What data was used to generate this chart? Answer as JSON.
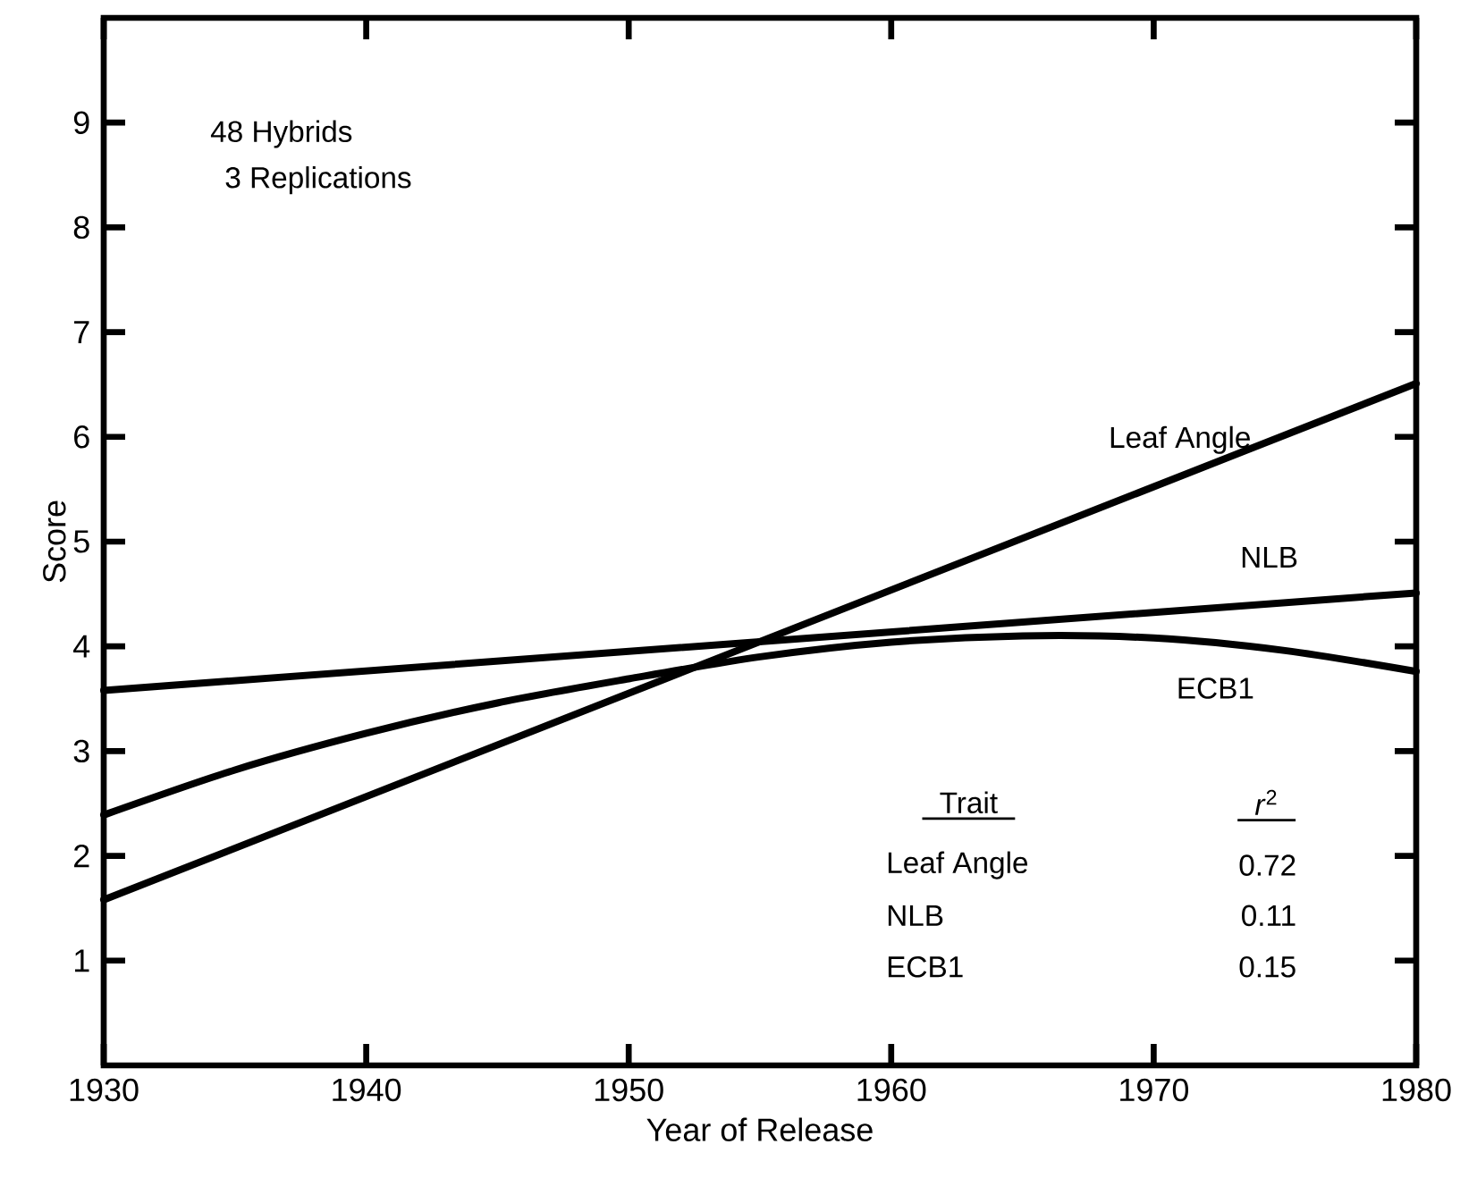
{
  "chart_data": {
    "type": "line",
    "xlabel": "Year of Release",
    "ylabel": "Score",
    "xlim": [
      1930,
      1980
    ],
    "xticks": [
      1930,
      1940,
      1950,
      1960,
      1970,
      1980
    ],
    "ylim": [
      0,
      10
    ],
    "yticks": [
      1,
      2,
      3,
      4,
      5,
      6,
      7,
      8,
      9
    ],
    "series": [
      {
        "name": "Leaf Angle",
        "color": "#000000",
        "x": [
          1930,
          1980
        ],
        "values": [
          1.58,
          6.51
        ]
      },
      {
        "name": "NLB",
        "color": "#000000",
        "x": [
          1930,
          1980
        ],
        "values": [
          3.58,
          4.51
        ]
      },
      {
        "name": "ECB1",
        "color": "#000000",
        "x": [
          1930,
          1935,
          1940,
          1945,
          1950,
          1955,
          1960,
          1965,
          1970,
          1975,
          1980
        ],
        "values": [
          2.39,
          2.82,
          3.17,
          3.46,
          3.69,
          3.9,
          4.04,
          4.1,
          4.08,
          3.96,
          3.76
        ]
      }
    ],
    "annotations": [
      "48 Hybrids",
      "3 Replications",
      "Trait",
      "*r*$^{2}$",
      "Leaf Angle",
      "0.72",
      "NLB",
      "0.11",
      "ECB1",
      "0.15"
    ],
    "legend": false,
    "grid": false,
    "marker": "none",
    "line_style": "solid"
  }
}
